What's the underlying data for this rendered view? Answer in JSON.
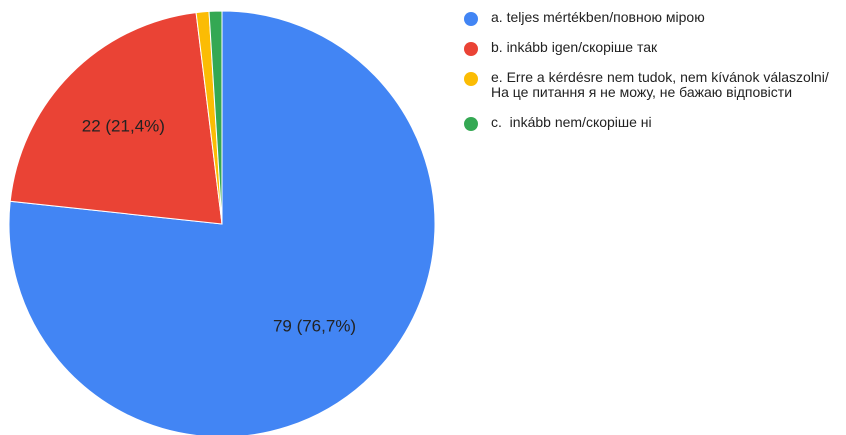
{
  "chart_data": {
    "type": "pie",
    "categories": [
      "a. teljes mértékben/повною мірою",
      "b. inkább igen/скоріше так",
      "e. Erre a kérdésre nem tudok, nem kívánok válaszolni/На це питання я не можу, не бажаю відповісти",
      "c.  inkább nem/скоріше ні"
    ],
    "values": [
      79,
      22,
      1,
      1
    ],
    "value_labels": [
      "79 (76,7%)",
      "22 (21,4%)",
      null,
      null
    ],
    "colors": [
      "#4285f4",
      "#ea4335",
      "#fbbc04",
      "#34a853"
    ],
    "legend": "right"
  }
}
